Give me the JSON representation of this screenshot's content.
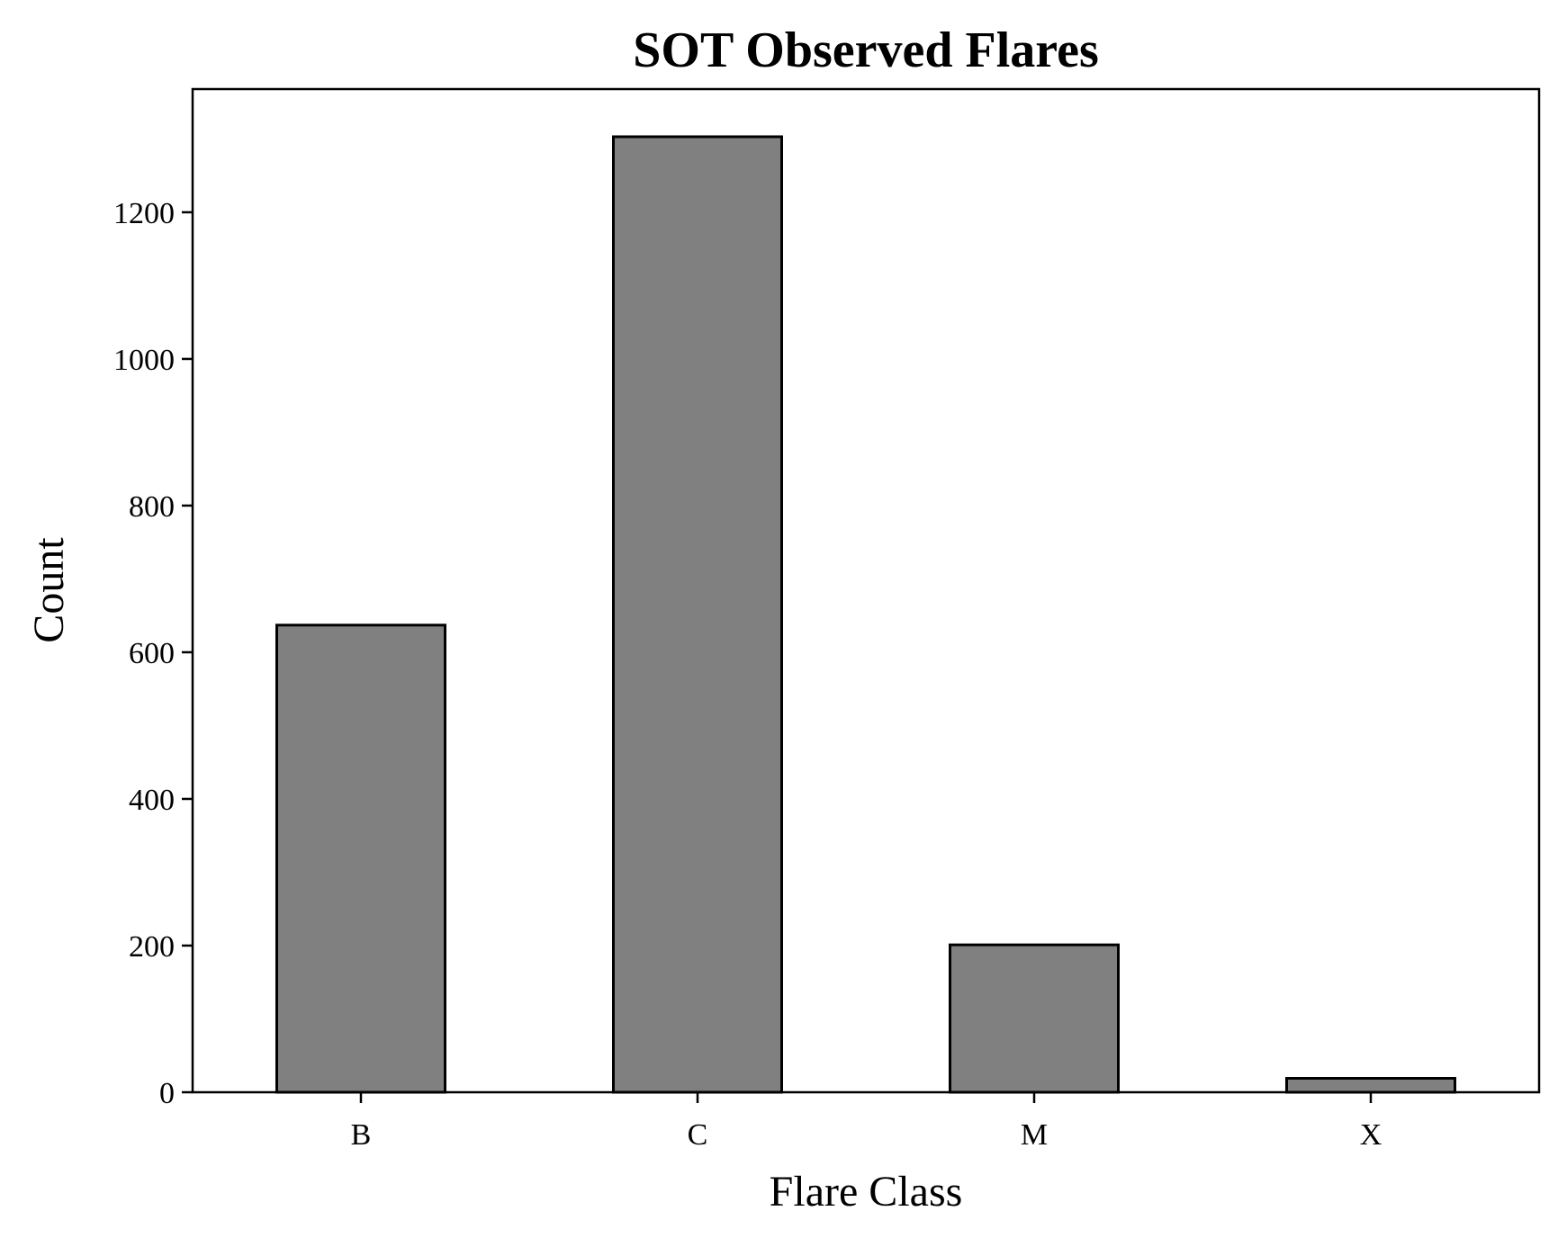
{
  "chart_data": {
    "type": "bar",
    "title": "SOT Observed Flares",
    "xlabel": "Flare Class",
    "ylabel": "Count",
    "categories": [
      "B",
      "C",
      "M",
      "X"
    ],
    "values": [
      637,
      1303,
      201,
      19
    ],
    "ylim": [
      0,
      1368
    ],
    "yticks": [
      0,
      200,
      400,
      600,
      800,
      1000,
      1200
    ],
    "grid": false,
    "legend": "none",
    "colors": {
      "bar_fill": "#808080",
      "bar_edge": "#000000",
      "axes": "#000000"
    }
  }
}
